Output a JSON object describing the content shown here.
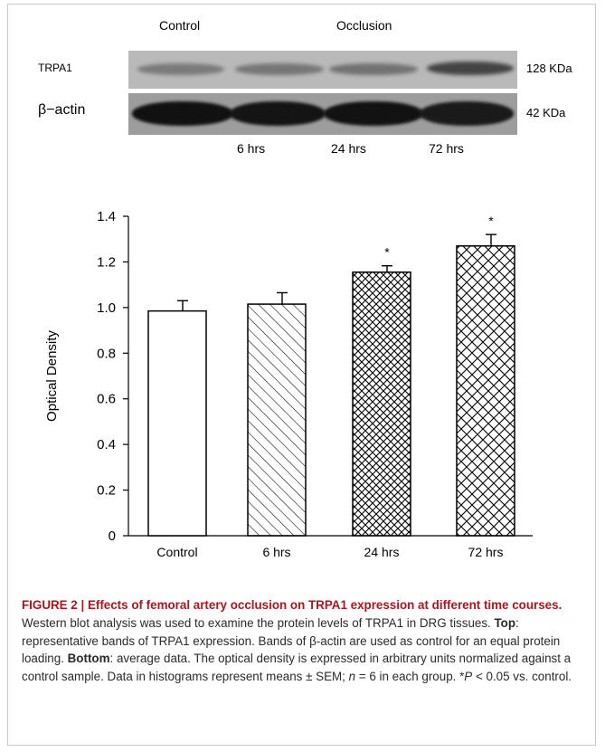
{
  "blot": {
    "header_control": "Control",
    "header_occlusion": "Occlusion",
    "row_label_trpa1": "TRPA1",
    "row_label_actin": "β−actin",
    "size_trpa1": "128 KDa",
    "size_actin": "42 KDa",
    "time_labels": [
      "6 hrs",
      "24 hrs",
      "72 hrs"
    ]
  },
  "chart_data": {
    "type": "bar",
    "categories": [
      "Control",
      "6 hrs",
      "24 hrs",
      "72 hrs"
    ],
    "values": [
      0.985,
      1.015,
      1.155,
      1.27
    ],
    "errors": [
      0.045,
      0.05,
      0.028,
      0.05
    ],
    "significance": [
      "",
      "",
      "*",
      "*"
    ],
    "patterns": [
      "none",
      "diagonal",
      "crosshatch",
      "crosshatch-wide"
    ],
    "title": "",
    "xlabel": "",
    "ylabel": "Optical Density",
    "ylim": [
      0,
      1.4
    ],
    "yticks": [
      "0",
      "0.2",
      "0.4",
      "0.6",
      "0.8",
      "1.0",
      "1.2",
      "1.4"
    ],
    "grid": false
  },
  "caption": {
    "title": "FIGURE 2 | Effects of femoral artery occlusion on TRPA1 expression at different time courses.",
    "sentence1": " Western blot analysis was used to examine the protein levels of TRPA1 in DRG tissues. ",
    "top_label": "Top",
    "top_text": ": representative bands of TRPA1 expression. Bands of β-actin are used as control for an equal protein loading. ",
    "bottom_label": "Bottom",
    "bottom_text": ": average data. The optical density is expressed in arbitrary units normalized against a control sample. Data in histograms represent means ± SEM; ",
    "n_var": "n",
    "n_text": " = 6 in each group. *",
    "p_var": "P",
    "p_text": " < 0.05 vs. control."
  }
}
